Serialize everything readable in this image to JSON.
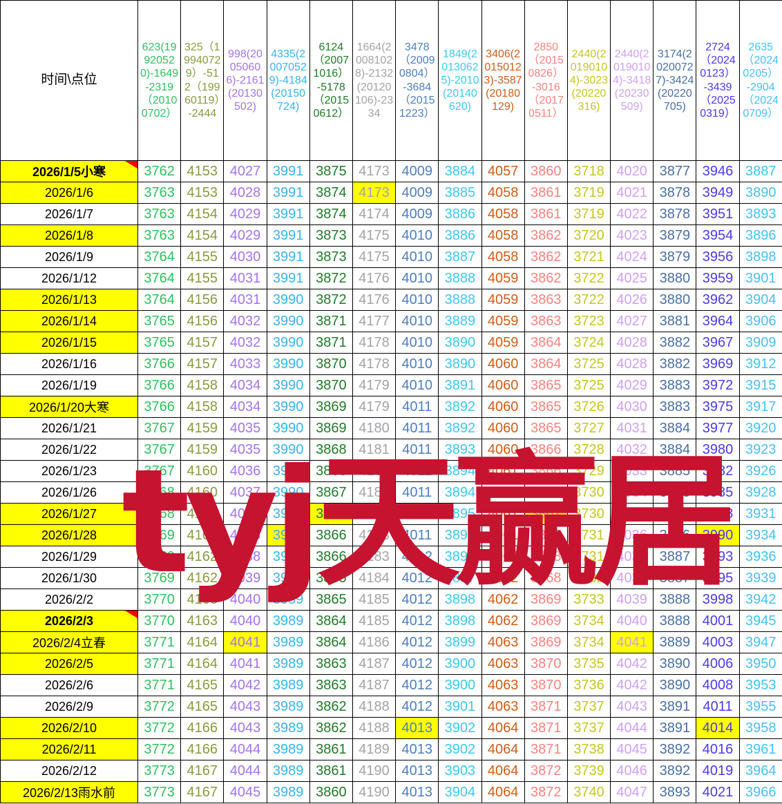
{
  "watermark": {
    "text": "tyj天赢居",
    "color": "#c51330"
  },
  "table": {
    "corner_header": "时间\\点位",
    "columns": [
      {
        "header": "623(19920520)-1649-2319（20100702）",
        "color": "#2fbf5f"
      },
      {
        "header": "325（19940729）-512（19960119）-2444",
        "color": "#8a9a3e"
      },
      {
        "header": "998(20050606)-2161(20130502)",
        "color": "#a473f2"
      },
      {
        "header": "4335(20070529)-4184(20150724)",
        "color": "#38b3f0"
      },
      {
        "header": "6124（20071016）-5178（20150612）",
        "color": "#1f7a28"
      },
      {
        "header": "1664(20081028)-2132(20120106)-2334",
        "color": "#a3a3a8"
      },
      {
        "header": "3478（20090804）-3684（20151223）",
        "color": "#4b7ec2"
      },
      {
        "header": "1849(20130625)-2010(20140620)",
        "color": "#3cc8f0"
      },
      {
        "header": "3406(20150123)-3587(20180129)",
        "color": "#cc5d18"
      },
      {
        "header": "2850（20150826）-3016（20170511）",
        "color": "#f9837e"
      },
      {
        "header": "2440(20190104)-3023(20220316)",
        "color": "#c6c620"
      },
      {
        "header": "2440(20190104)-3418(20230509)",
        "color": "#cfa0f5"
      },
      {
        "header": "3174(20200727)-3424(20220705)",
        "color": "#4a6fa5"
      },
      {
        "header": "2724（20240123）-3439（20250319）",
        "color": "#4a3af0"
      },
      {
        "header": "2635（20240205）-2904（20240709）",
        "color": "#45c0fa"
      }
    ],
    "rows": [
      {
        "date": "2026/1/5小寒",
        "highlight": true,
        "bold": true,
        "marker": true,
        "cell_highlights": [],
        "values": [
          3762,
          4153,
          4027,
          3991,
          3875,
          4173,
          4009,
          3884,
          4057,
          3860,
          3718,
          4020,
          3877,
          3946,
          3887
        ]
      },
      {
        "date": "2026/1/6",
        "highlight": true,
        "bold": false,
        "marker": false,
        "cell_highlights": [
          5
        ],
        "values": [
          3763,
          4153,
          4028,
          3991,
          3874,
          4173,
          4009,
          3885,
          4058,
          3861,
          3719,
          4021,
          3878,
          3949,
          3890
        ]
      },
      {
        "date": "2026/1/7",
        "highlight": false,
        "bold": false,
        "marker": false,
        "cell_highlights": [],
        "values": [
          3763,
          4154,
          4029,
          3991,
          3874,
          4174,
          4009,
          3886,
          4058,
          3861,
          3719,
          4022,
          3878,
          3951,
          3893
        ]
      },
      {
        "date": "2026/1/8",
        "highlight": true,
        "bold": false,
        "marker": false,
        "cell_highlights": [],
        "values": [
          3763,
          4154,
          4029,
          3991,
          3873,
          4175,
          4010,
          3886,
          4058,
          3862,
          3720,
          4023,
          3879,
          3954,
          3896
        ]
      },
      {
        "date": "2026/1/9",
        "highlight": false,
        "bold": false,
        "marker": false,
        "cell_highlights": [],
        "values": [
          3764,
          4155,
          4030,
          3991,
          3873,
          4175,
          4010,
          3887,
          4058,
          3862,
          3721,
          4024,
          3879,
          3956,
          3898
        ]
      },
      {
        "date": "2026/1/12",
        "highlight": false,
        "bold": false,
        "marker": false,
        "cell_highlights": [],
        "values": [
          3764,
          4155,
          4031,
          3991,
          3872,
          4176,
          4010,
          3888,
          4059,
          3862,
          3722,
          4025,
          3880,
          3959,
          3901
        ]
      },
      {
        "date": "2026/1/13",
        "highlight": true,
        "bold": false,
        "marker": false,
        "cell_highlights": [],
        "values": [
          3764,
          4156,
          4031,
          3990,
          3872,
          4176,
          4010,
          3888,
          4059,
          3863,
          3722,
          4026,
          3880,
          3962,
          3904
        ]
      },
      {
        "date": "2026/1/14",
        "highlight": true,
        "bold": false,
        "marker": false,
        "cell_highlights": [],
        "values": [
          3765,
          4156,
          4032,
          3990,
          3871,
          4177,
          4010,
          3889,
          4059,
          3863,
          3723,
          4027,
          3881,
          3964,
          3906
        ]
      },
      {
        "date": "2026/1/15",
        "highlight": true,
        "bold": false,
        "marker": false,
        "cell_highlights": [],
        "values": [
          3765,
          4157,
          4032,
          3990,
          3871,
          4178,
          4010,
          3890,
          4059,
          3864,
          3724,
          4028,
          3882,
          3967,
          3909
        ]
      },
      {
        "date": "2026/1/16",
        "highlight": false,
        "bold": false,
        "marker": false,
        "cell_highlights": [],
        "values": [
          3766,
          4157,
          4033,
          3990,
          3870,
          4178,
          4010,
          3890,
          4060,
          3864,
          3725,
          4028,
          3882,
          3969,
          3912
        ]
      },
      {
        "date": "2026/1/19",
        "highlight": false,
        "bold": false,
        "marker": false,
        "cell_highlights": [],
        "values": [
          3766,
          4158,
          4034,
          3990,
          3870,
          4179,
          4010,
          3891,
          4060,
          3865,
          3725,
          4029,
          3883,
          3972,
          3915
        ]
      },
      {
        "date": "2026/1/20大寒",
        "highlight": true,
        "bold": false,
        "marker": false,
        "cell_highlights": [],
        "values": [
          3766,
          4158,
          4034,
          3990,
          3869,
          4179,
          4011,
          3892,
          4060,
          3865,
          3726,
          4030,
          3883,
          3975,
          3917
        ]
      },
      {
        "date": "2026/1/21",
        "highlight": false,
        "bold": false,
        "marker": false,
        "cell_highlights": [],
        "values": [
          3767,
          4159,
          4035,
          3990,
          3869,
          4180,
          4011,
          3892,
          4060,
          3865,
          3727,
          4031,
          3884,
          3977,
          3920
        ]
      },
      {
        "date": "2026/1/22",
        "highlight": false,
        "bold": false,
        "marker": false,
        "cell_highlights": [],
        "values": [
          3767,
          4159,
          4035,
          3990,
          3868,
          4181,
          4011,
          3893,
          4060,
          3866,
          3728,
          4032,
          3884,
          3980,
          3923
        ]
      },
      {
        "date": "2026/1/23",
        "highlight": false,
        "bold": false,
        "marker": false,
        "cell_highlights": [],
        "values": [
          3767,
          4160,
          4036,
          3990,
          3868,
          4181,
          4011,
          3894,
          4061,
          3866,
          3729,
          4033,
          3885,
          3982,
          3926
        ]
      },
      {
        "date": "2026/1/26",
        "highlight": false,
        "bold": false,
        "marker": false,
        "cell_highlights": [],
        "values": [
          3768,
          4160,
          4037,
          3990,
          3867,
          4182,
          4011,
          3894,
          4061,
          3867,
          3730,
          4034,
          3885,
          3985,
          3928
        ]
      },
      {
        "date": "2026/1/27",
        "highlight": true,
        "bold": false,
        "marker": false,
        "cell_highlights": [
          4,
          9
        ],
        "values": [
          3768,
          4161,
          4037,
          3990,
          3867,
          4182,
          4011,
          3895,
          4061,
          3867,
          3730,
          4035,
          3886,
          3988,
          3931
        ]
      },
      {
        "date": "2026/1/28",
        "highlight": true,
        "bold": false,
        "marker": false,
        "cell_highlights": [
          3,
          13
        ],
        "values": [
          3769,
          4161,
          4038,
          3990,
          3866,
          4183,
          4011,
          3896,
          4061,
          3867,
          3731,
          4036,
          3886,
          3990,
          3934
        ]
      },
      {
        "date": "2026/1/29",
        "highlight": false,
        "bold": false,
        "marker": false,
        "cell_highlights": [],
        "values": [
          3769,
          4162,
          4038,
          3990,
          3866,
          4183,
          4012,
          3896,
          4062,
          3868,
          3731,
          4037,
          3887,
          3993,
          3936
        ]
      },
      {
        "date": "2026/1/30",
        "highlight": false,
        "bold": false,
        "marker": false,
        "cell_highlights": [],
        "values": [
          3769,
          4162,
          4039,
          3990,
          3865,
          4184,
          4012,
          3897,
          4062,
          3868,
          3732,
          4038,
          3887,
          3995,
          3939
        ]
      },
      {
        "date": "2026/2/2",
        "highlight": false,
        "bold": false,
        "marker": false,
        "cell_highlights": [],
        "values": [
          3770,
          4163,
          4040,
          3989,
          3865,
          4185,
          4012,
          3898,
          4062,
          3869,
          3733,
          4039,
          3888,
          3998,
          3942
        ]
      },
      {
        "date": "2026/2/3",
        "highlight": true,
        "bold": true,
        "marker": true,
        "cell_highlights": [],
        "values": [
          3770,
          4163,
          4040,
          3989,
          3864,
          4185,
          4012,
          3898,
          4062,
          3869,
          3734,
          4040,
          3888,
          4001,
          3945
        ]
      },
      {
        "date": "2026/2/4立春",
        "highlight": true,
        "bold": false,
        "marker": false,
        "cell_highlights": [
          2,
          11
        ],
        "values": [
          3771,
          4164,
          4041,
          3989,
          3864,
          4186,
          4012,
          3899,
          4063,
          3869,
          3734,
          4041,
          3889,
          4003,
          3947
        ]
      },
      {
        "date": "2026/2/5",
        "highlight": true,
        "bold": false,
        "marker": false,
        "cell_highlights": [],
        "values": [
          3771,
          4164,
          4041,
          3989,
          3863,
          4187,
          4012,
          3900,
          4063,
          3870,
          3735,
          4042,
          3890,
          4006,
          3950
        ]
      },
      {
        "date": "2026/2/6",
        "highlight": false,
        "bold": false,
        "marker": false,
        "cell_highlights": [],
        "values": [
          3771,
          4165,
          4042,
          3989,
          3863,
          4187,
          4012,
          3900,
          4063,
          3870,
          3736,
          4042,
          3890,
          4008,
          3953
        ]
      },
      {
        "date": "2026/2/9",
        "highlight": false,
        "bold": false,
        "marker": false,
        "cell_highlights": [],
        "values": [
          3772,
          4165,
          4043,
          3989,
          3862,
          4188,
          4012,
          3901,
          4063,
          3871,
          3737,
          4043,
          3891,
          4011,
          3955
        ]
      },
      {
        "date": "2026/2/10",
        "highlight": true,
        "bold": false,
        "marker": false,
        "cell_highlights": [
          6,
          13
        ],
        "values": [
          3772,
          4166,
          4043,
          3989,
          3862,
          4188,
          4013,
          3902,
          4064,
          3871,
          3737,
          4044,
          3891,
          4014,
          3958
        ]
      },
      {
        "date": "2026/2/11",
        "highlight": true,
        "bold": false,
        "marker": false,
        "cell_highlights": [],
        "values": [
          3772,
          4166,
          4044,
          3989,
          3861,
          4189,
          4013,
          3902,
          4064,
          3871,
          3738,
          4045,
          3892,
          4016,
          3961
        ]
      },
      {
        "date": "2026/2/12",
        "highlight": false,
        "bold": false,
        "marker": false,
        "cell_highlights": [],
        "values": [
          3773,
          4167,
          4044,
          3989,
          3861,
          4190,
          4013,
          3903,
          4064,
          3872,
          3739,
          4046,
          3892,
          4019,
          3964
        ]
      },
      {
        "date": "2026/2/13雨水前",
        "highlight": true,
        "bold": false,
        "marker": false,
        "cell_highlights": [],
        "values": [
          3773,
          4167,
          4045,
          3989,
          3860,
          4190,
          4013,
          3904,
          4064,
          3872,
          3740,
          4047,
          3893,
          4021,
          3966
        ]
      }
    ]
  }
}
